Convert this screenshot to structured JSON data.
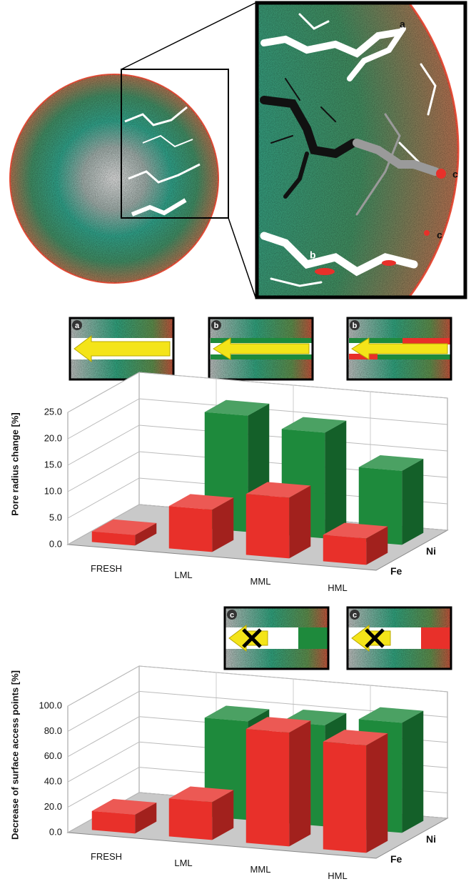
{
  "illustration": {
    "zoom_labels": [
      "a",
      "c",
      "c",
      "b"
    ],
    "inset_labels": [
      "a",
      "b",
      "b",
      "c",
      "c"
    ]
  },
  "chart_data": [
    {
      "type": "bar",
      "y_label": "Pore radius change [%]",
      "categories": [
        "FRESH",
        "LML",
        "MML",
        "HML"
      ],
      "series": [
        {
          "name": "Ni",
          "color": "#1e8a3c",
          "values": [
            null,
            22,
            20,
            14
          ]
        },
        {
          "name": "Fe",
          "color": "#e8302a",
          "values": [
            2,
            8,
            11.5,
            5
          ]
        }
      ],
      "ylim": [
        0,
        25
      ],
      "yticks": [
        {
          "value": 0,
          "label": "0.0"
        },
        {
          "value": 5,
          "label": "5.0"
        },
        {
          "value": 10,
          "label": "10.0"
        },
        {
          "value": 15,
          "label": "15.0"
        },
        {
          "value": 20,
          "label": "20.0"
        },
        {
          "value": 25,
          "label": "25.0"
        }
      ],
      "grid": true
    },
    {
      "type": "bar",
      "y_label": "Decrease of surface access points [%]",
      "categories": [
        "FRESH",
        "LML",
        "MML",
        "HML"
      ],
      "series": [
        {
          "name": "Ni",
          "color": "#1e8a3c",
          "values": [
            null,
            78,
            80,
            87
          ]
        },
        {
          "name": "Fe",
          "color": "#e8302a",
          "values": [
            15,
            30,
            90,
            85
          ]
        }
      ],
      "ylim": [
        0,
        100
      ],
      "yticks": [
        {
          "value": 0,
          "label": "0.0"
        },
        {
          "value": 20,
          "label": "20.0"
        },
        {
          "value": 40,
          "label": "40.0"
        },
        {
          "value": 60,
          "label": "60.0"
        },
        {
          "value": 80,
          "label": "80.0"
        },
        {
          "value": 100,
          "label": "100.0"
        }
      ],
      "grid": true
    }
  ]
}
